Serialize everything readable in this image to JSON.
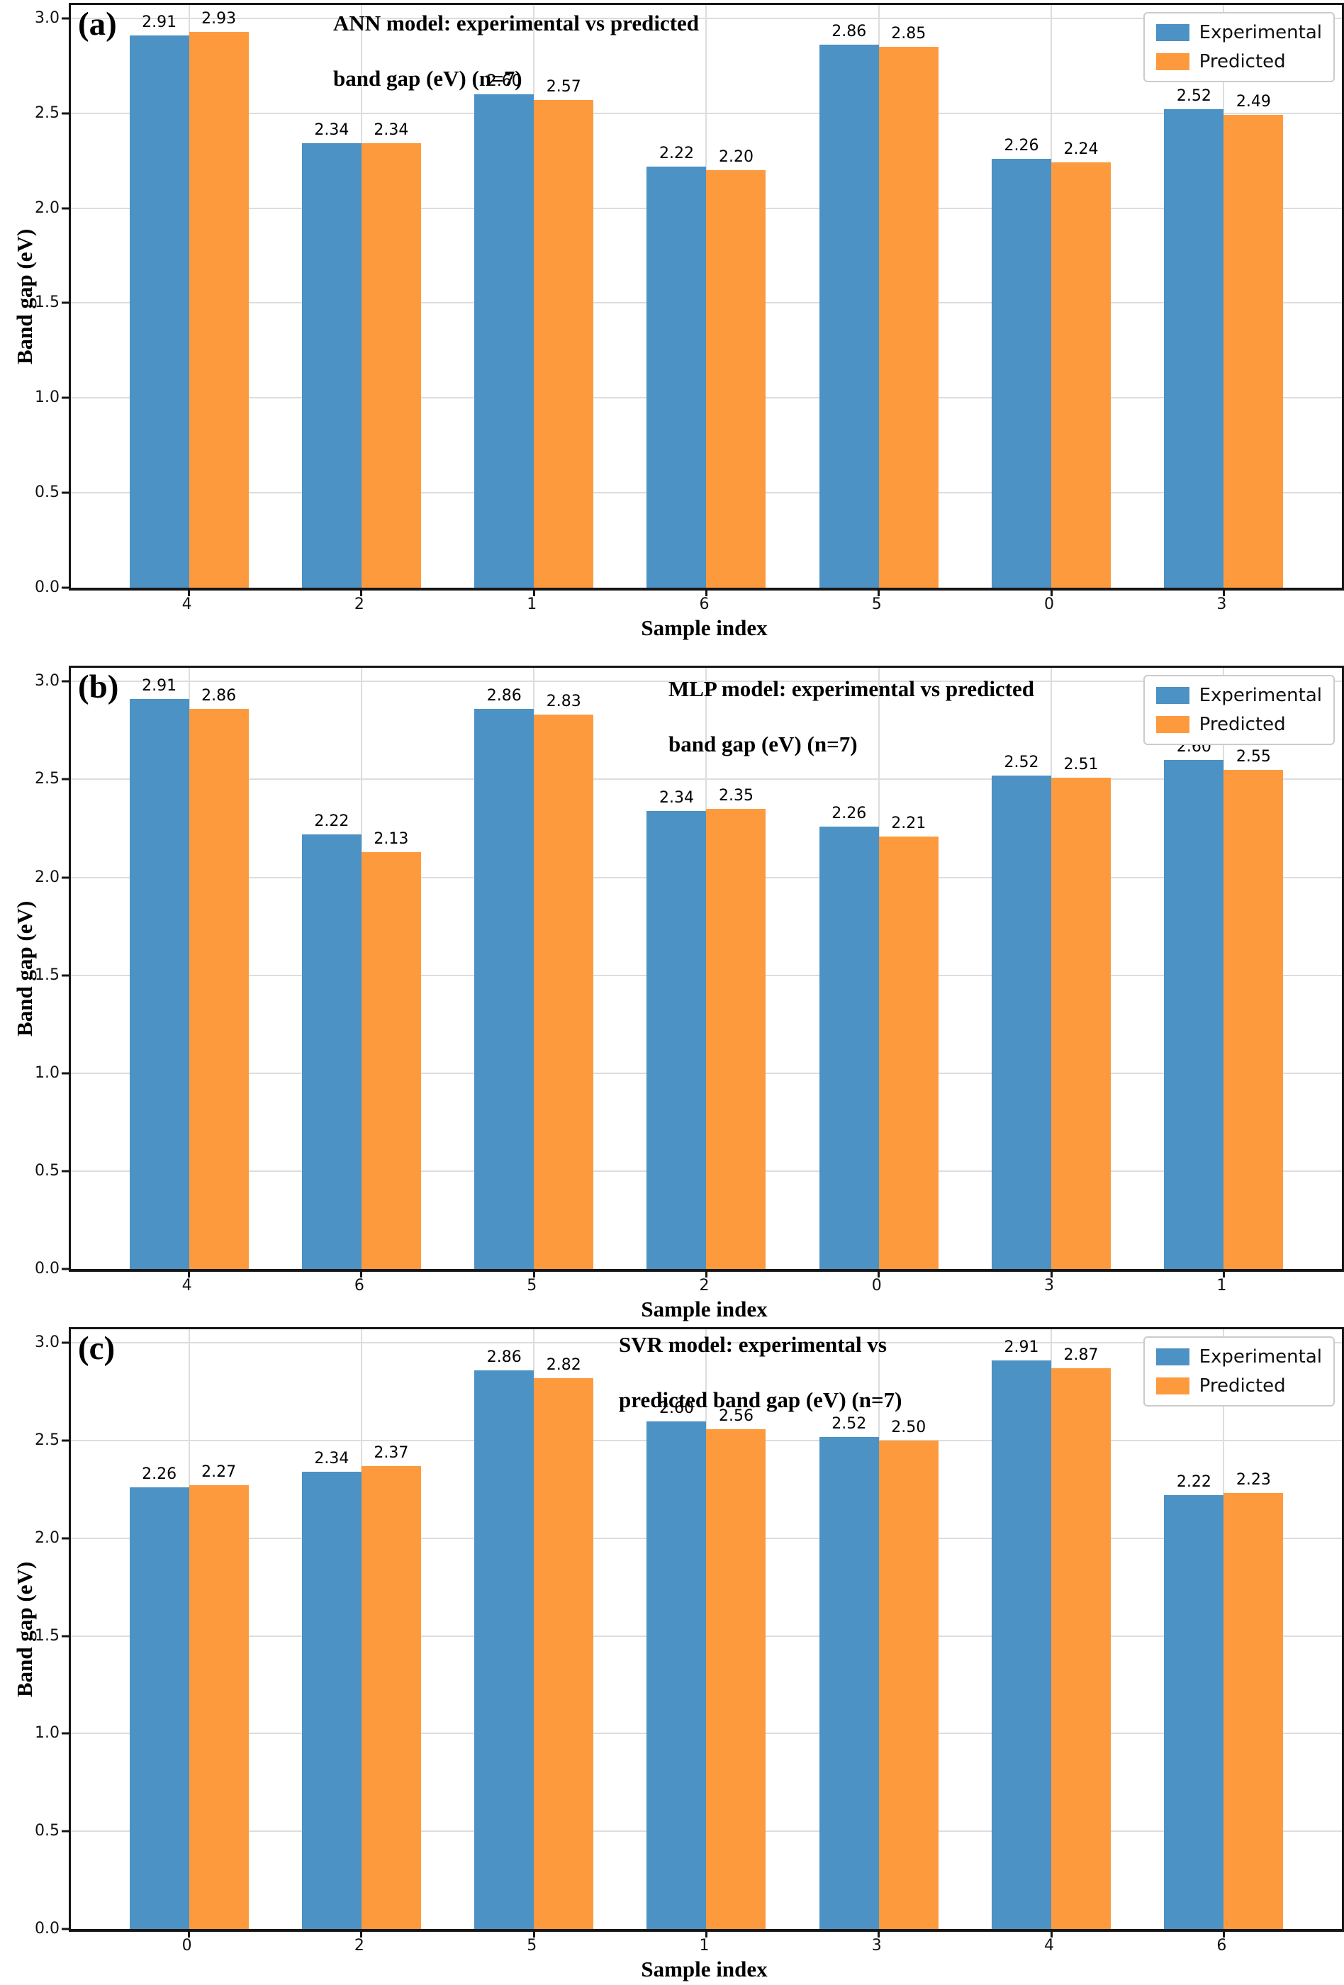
{
  "figure": {
    "xlabel": "Sample index",
    "ylabel": "Band gap (eV)",
    "legend": {
      "experimental": "Experimental",
      "predicted": "Predicted",
      "position": "top-right"
    },
    "colors": {
      "experimental": "#4c92c4",
      "predicted": "#fe9a3e",
      "gridline": "#dddddd",
      "frame": "#161616"
    }
  },
  "chart_data": [
    {
      "type": "bar",
      "panel_label": "(a)",
      "title_line1": "ANN model: experimental vs predicted",
      "title_line2": "band gap (eV) (n=7)",
      "xlabel": "Sample index",
      "ylabel": "Band gap (eV)",
      "categories": [
        "4",
        "2",
        "1",
        "6",
        "5",
        "0",
        "3"
      ],
      "series": [
        {
          "name": "Experimental",
          "values": [
            2.91,
            2.34,
            2.6,
            2.22,
            2.86,
            2.26,
            2.52
          ]
        },
        {
          "name": "Predicted",
          "values": [
            2.93,
            2.34,
            2.57,
            2.2,
            2.85,
            2.24,
            2.49
          ]
        }
      ],
      "yticks": [
        0.0,
        0.5,
        1.0,
        1.5,
        2.0,
        2.5,
        3.0
      ],
      "ylim": [
        0,
        3.07
      ],
      "grid": true,
      "legend_position": "top-right",
      "value_labels_decimals": 2
    },
    {
      "type": "bar",
      "panel_label": "(b)",
      "title_line1": "MLP model: experimental vs predicted",
      "title_line2": "band gap (eV) (n=7)",
      "xlabel": "Sample index",
      "ylabel": "Band gap (eV)",
      "categories": [
        "4",
        "6",
        "5",
        "2",
        "0",
        "3",
        "1"
      ],
      "series": [
        {
          "name": "Experimental",
          "values": [
            2.91,
            2.22,
            2.86,
            2.34,
            2.26,
            2.52,
            2.6
          ]
        },
        {
          "name": "Predicted",
          "values": [
            2.86,
            2.13,
            2.83,
            2.35,
            2.21,
            2.51,
            2.55
          ]
        }
      ],
      "yticks": [
        0.0,
        0.5,
        1.0,
        1.5,
        2.0,
        2.5,
        3.0
      ],
      "ylim": [
        0,
        3.07
      ],
      "grid": true,
      "legend_position": "top-right",
      "value_labels_decimals": 2
    },
    {
      "type": "bar",
      "panel_label": "(c)",
      "title_line1": "SVR model: experimental vs",
      "title_line2": "predicted band gap (eV) (n=7)",
      "xlabel": "Sample index",
      "ylabel": "Band gap (eV)",
      "categories": [
        "0",
        "2",
        "5",
        "1",
        "3",
        "4",
        "6"
      ],
      "series": [
        {
          "name": "Experimental",
          "values": [
            2.26,
            2.34,
            2.86,
            2.6,
            2.52,
            2.91,
            2.22
          ]
        },
        {
          "name": "Predicted",
          "values": [
            2.27,
            2.37,
            2.82,
            2.56,
            2.5,
            2.87,
            2.23
          ]
        }
      ],
      "yticks": [
        0.0,
        0.5,
        1.0,
        1.5,
        2.0,
        2.5,
        3.0
      ],
      "ylim": [
        0,
        3.07
      ],
      "grid": true,
      "legend_position": "top-right",
      "value_labels_decimals": 2
    }
  ]
}
